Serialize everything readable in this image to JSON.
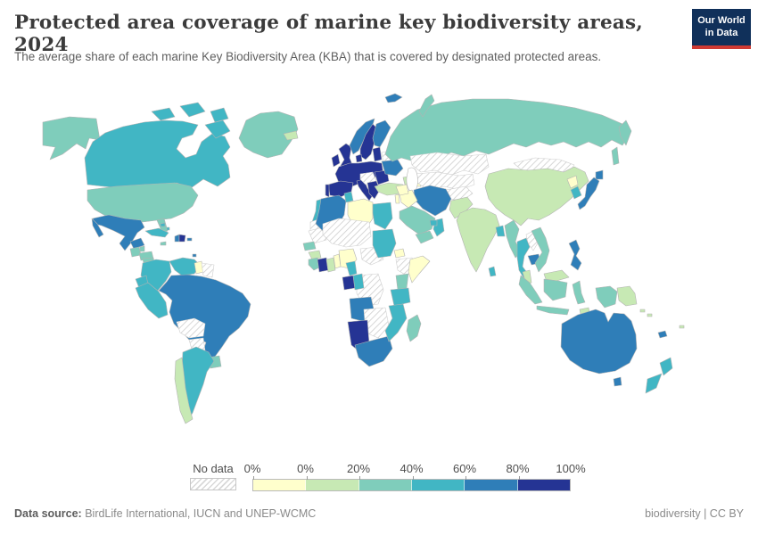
{
  "header": {
    "title": "Protected area coverage of marine key biodiversity areas, 2024",
    "subtitle": "The average share of each marine Key Biodiversity Area (KBA) that is covered by designated protected areas.",
    "logo": {
      "line1": "Our World",
      "line2": "in Data",
      "bg_color": "#10305a",
      "accent_color": "#cf3a33"
    }
  },
  "legend": {
    "no_data_label": "No data",
    "tick_labels": [
      "0%",
      "0%",
      "20%",
      "40%",
      "60%",
      "80%",
      "100%"
    ],
    "bin_keys": [
      "0",
      "0-20",
      "20-40",
      "40-60",
      "60-80",
      "80-100"
    ],
    "bin_colors": {
      "0": "#ffffcc",
      "0-20": "#c7e9b4",
      "20-40": "#7fcdbb",
      "40-60": "#41b6c4",
      "60-80": "#2f7eb8",
      "80-100": "#253494"
    },
    "no_data_key": "no-data"
  },
  "footer": {
    "source_label": "Data source:",
    "source_text": " BirdLife International, IUCN and UNEP-WCMC",
    "right_text": "biodiversity | CC BY"
  },
  "chart_data": {
    "type": "choropleth",
    "title": "Protected area coverage of marine key biodiversity areas, 2024",
    "unit": "% of each marine KBA covered by protected areas",
    "legend_position": "bottom",
    "bins": [
      "no-data",
      "0",
      "0-20",
      "20-40",
      "40-60",
      "60-80",
      "80-100"
    ],
    "countries": {
      "Canada": "40-60",
      "United States": "20-40",
      "Greenland": "20-40",
      "Iceland": "0-20",
      "Mexico": "60-80",
      "Belize": "20-40",
      "Guatemala": "20-40",
      "Honduras": "20-40",
      "Nicaragua": "20-40",
      "Costa Rica": "40-60",
      "Panama": "40-60",
      "Cuba": "40-60",
      "Bahamas": "40-60",
      "Jamaica": "20-40",
      "Haiti": "60-80",
      "Dominican Republic": "80-100",
      "Puerto Rico": "60-80",
      "Trinidad and Tobago": "60-80",
      "Colombia": "40-60",
      "Venezuela": "40-60",
      "Guyana": "0",
      "Suriname": "no-data",
      "Ecuador": "40-60",
      "Peru": "40-60",
      "Brazil": "60-80",
      "Bolivia": "no-data",
      "Paraguay": "no-data",
      "Uruguay": "20-40",
      "Argentina": "40-60",
      "Chile": "0-20",
      "United Kingdom": "80-100",
      "Ireland": "80-100",
      "Norway": "60-80",
      "Sweden": "80-100",
      "Finland": "60-80",
      "Denmark": "80-100",
      "Estonia": "80-100",
      "Belarus": "no-data",
      "Poland": "80-100",
      "Germany": "80-100",
      "France": "80-100",
      "Spain": "80-100",
      "Portugal": "80-100",
      "Italy": "80-100",
      "Austria": "no-data",
      "Croatia": "80-100",
      "Romania": "80-100",
      "Ukraine": "60-80",
      "Turkey": "0-20",
      "Georgia": "0-20",
      "Azerbaijan": "0",
      "Russia": "20-40",
      "Kazakhstan": "no-data",
      "Uzbekistan": "no-data",
      "Mongolia": "no-data",
      "China": "0-20",
      "North Korea": "0",
      "South Korea": "40-60",
      "Japan": "60-80",
      "Afghanistan": "no-data",
      "Pakistan": "0-20",
      "India": "0-20",
      "Sri Lanka": "40-60",
      "Bangladesh": "40-60",
      "Myanmar": "20-40",
      "Thailand": "40-60",
      "Laos": "no-data",
      "Cambodia": "60-80",
      "Vietnam": "20-40",
      "Malaysia": "0-20",
      "Indonesia": "20-40",
      "Papua New Guinea": "0-20",
      "Solomon Islands": "0-20",
      "Timor-Leste": "0-20",
      "Philippines": "60-80",
      "Fiji": "0-20",
      "Iran": "60-80",
      "Iraq": "0",
      "Syria": "0",
      "Israel": "0",
      "Saudi Arabia": "20-40",
      "Yemen": "20-40",
      "Oman": "40-60",
      "United Arab Emirates": "40-60",
      "Morocco": "40-60",
      "Western Sahara": "no-data",
      "Mauritania": "no-data",
      "Senegal": "20-40",
      "Guinea": "0-20",
      "Liberia": "20-40",
      "Cote d'Ivoire": "80-100",
      "Ghana": "0-20",
      "Benin": "0",
      "Nigeria": "0",
      "Algeria": "60-80",
      "Tunisia": "40-60",
      "Libya": "0",
      "Egypt": "40-60",
      "Sudan": "40-60",
      "Eritrea": "0",
      "Ethiopia": "no-data",
      "Somalia": "0",
      "Mali": "no-data",
      "Chad": "no-data",
      "Cameroon": "40-60",
      "Gabon": "80-100",
      "Congo": "40-60",
      "Democratic Republic of Congo": "no-data",
      "Kenya": "20-40",
      "Tanzania": "40-60",
      "Angola": "60-80",
      "Zambia": "no-data",
      "Namibia": "80-100",
      "South Africa": "60-80",
      "Mozambique": "40-60",
      "Madagascar": "20-40",
      "Australia": "60-80",
      "New Zealand": "40-60",
      "New Caledonia": "60-80"
    }
  }
}
